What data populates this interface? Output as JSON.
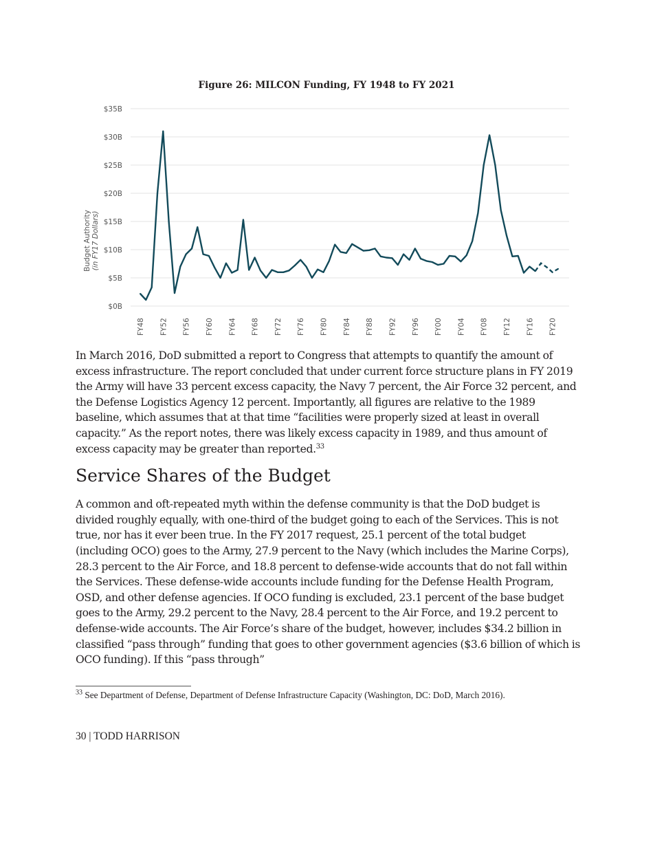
{
  "figure": {
    "title": "Figure 26: MILCON Funding, FY 1948 to FY 2021"
  },
  "chart_data": {
    "type": "line",
    "title": "Figure 26: MILCON Funding, FY 1948 to FY 2021",
    "ylabel": "Budget Authority",
    "ylabel_sub": "(in FY17 Dollars)",
    "xlabel": "",
    "ylim": [
      0,
      35
    ],
    "yticks": [
      "$0B",
      "$5B",
      "$10B",
      "$15B",
      "$20B",
      "$25B",
      "$30B",
      "$35B"
    ],
    "xticks": [
      "FY48",
      "FY52",
      "FY56",
      "FY60",
      "FY64",
      "FY68",
      "FY72",
      "FY76",
      "FY80",
      "FY84",
      "FY88",
      "FY92",
      "FY96",
      "FY00",
      "FY04",
      "FY08",
      "FY12",
      "FY16",
      "FY20"
    ],
    "grid": true,
    "line_color": "#124a5a",
    "dashed_from_year": 2017,
    "x": [
      1948,
      1949,
      1950,
      1951,
      1952,
      1953,
      1954,
      1955,
      1956,
      1957,
      1958,
      1959,
      1960,
      1961,
      1962,
      1963,
      1964,
      1965,
      1966,
      1967,
      1968,
      1969,
      1970,
      1971,
      1972,
      1973,
      1974,
      1975,
      1976,
      1977,
      1978,
      1979,
      1980,
      1981,
      1982,
      1983,
      1984,
      1985,
      1986,
      1987,
      1988,
      1989,
      1990,
      1991,
      1992,
      1993,
      1994,
      1995,
      1996,
      1997,
      1998,
      1999,
      2000,
      2001,
      2002,
      2003,
      2004,
      2005,
      2006,
      2007,
      2008,
      2009,
      2010,
      2011,
      2012,
      2013,
      2014,
      2015,
      2016,
      2017,
      2018,
      2019,
      2020,
      2021
    ],
    "values": [
      2.2,
      1.1,
      3.3,
      20,
      31,
      15,
      2.3,
      7,
      9.2,
      10.2,
      14,
      9.2,
      8.9,
      6.8,
      5,
      7.6,
      5.9,
      6.4,
      15.3,
      6.4,
      8.6,
      6.3,
      5,
      6.4,
      6,
      6,
      6.3,
      7.2,
      8.2,
      7,
      5,
      6.5,
      6,
      8,
      10.9,
      9.6,
      9.4,
      11,
      10.4,
      9.8,
      9.9,
      10.2,
      8.8,
      8.6,
      8.5,
      7.3,
      9.2,
      8.2,
      10.2,
      8.4,
      8,
      7.8,
      7.3,
      7.5,
      8.9,
      8.8,
      7.9,
      9,
      11.5,
      16.5,
      25,
      30.3,
      25,
      17,
      12.5,
      8.8,
      8.9,
      5.9,
      7,
      6.2,
      7.6,
      6.9,
      6,
      6.6
    ]
  },
  "body": {
    "p1": "In March 2016, DoD submitted a report to Congress that attempts to quantify the amount of excess infrastructure.  The report concluded that under current force structure plans in FY 2019 the Army will have 33 percent excess capacity, the Navy 7 percent, the Air Force 32 percent, and the Defense Logistics Agency 12 percent.  Importantly, all figures are relative to the 1989 baseline, which assumes that at that time “facilities were properly sized at least in overall capacity.”  As the report notes, there was likely excess capacity in 1989, and thus amount of excess capacity may be greater than reported.",
    "p1_ref": "33",
    "heading": "Service Shares of the Budget",
    "p2": "A common and oft-repeated myth within the defense community is that the DoD budget is divided roughly equally, with one-third of the budget going to each of the Services. This is not true, nor has it ever been true. In the FY 2017 request, 25.1 percent of the total budget (including OCO) goes to the Army, 27.9 percent to the Navy (which includes the Marine Corps), 28.3 percent to the Air Force, and 18.8 percent to defense-wide accounts that do not fall within the Services. These defense-wide accounts include funding for the Defense Health Program, OSD, and other defense agencies. If OCO funding is excluded, 23.1 percent of the base budget goes to the Army, 29.2 percent to the Navy, 28.4 percent to the Air Force, and 19.2 percent to defense-wide accounts. The Air Force’s share of the budget, however, includes $34.2 billion in classified “pass through” funding that goes to other government agencies ($3.6 billion of which is OCO funding). If this “pass through”"
  },
  "footnote": {
    "number": "33",
    "text": " See Department of Defense, Department of Defense Infrastructure Capacity (Washington, DC: DoD, March 2016)."
  },
  "footer": {
    "text": "30 | TODD HARRISON"
  }
}
